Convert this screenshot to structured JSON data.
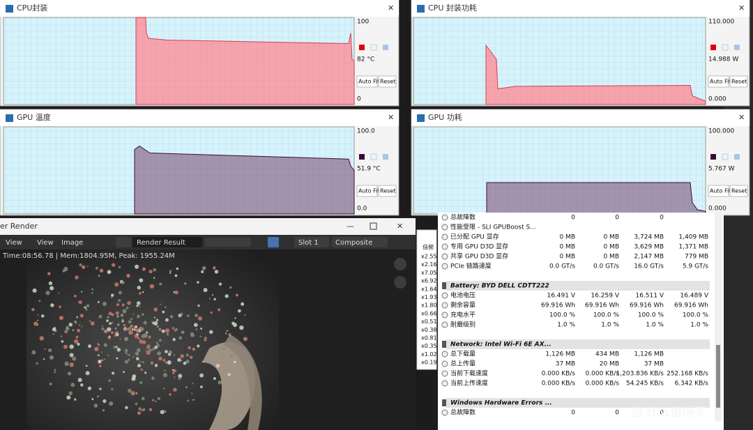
{
  "graphs": [
    {
      "title": "CPU封装",
      "max": "100",
      "current": "82 °C",
      "min": "0"
    },
    {
      "title": "CPU 封装功耗",
      "max": "110.000",
      "current": "14.988 W",
      "min": "0.000"
    },
    {
      "title": "GPU 温度",
      "max": "100.0",
      "current": "51.9 °C",
      "min": "0.0"
    },
    {
      "title": "GPU 功耗",
      "max": "100.000",
      "current": "5.767 W",
      "min": "0.000"
    }
  ],
  "buttons": {
    "auto_fit": "Auto Fit",
    "reset": "Reset"
  },
  "render": {
    "title": "er Render",
    "menu": [
      "View",
      "View",
      "Image"
    ],
    "result": "Render Result",
    "slot": "Slot 1",
    "layer": "Composite",
    "status": "Time:08:56.78 | Mem:1804.95M, Peak: 1955.24M"
  },
  "multipliers": {
    "header": "倍频",
    "values": [
      "x2.55",
      "x2.16",
      "x7.05",
      "x6.92",
      "x1.64",
      "x1.93",
      "x1.80",
      "x0.66",
      "x0.51",
      "x0.38",
      "x0.81",
      "x0.35",
      "x1.02",
      "x0.19"
    ]
  },
  "sensors": {
    "rows": [
      {
        "label": "总故障数",
        "values": [
          "0",
          "0",
          "0"
        ]
      },
      {
        "label": "性能受限 - SLI GPUBoost S..."
      },
      {
        "label": "已分配 GPU 显存",
        "values": [
          "0 MB",
          "0 MB",
          "3,724 MB",
          "1,409 MB"
        ]
      },
      {
        "label": "专用 GPU D3D 显存",
        "values": [
          "0 MB",
          "0 MB",
          "3,629 MB",
          "1,371 MB"
        ]
      },
      {
        "label": "共享 GPU D3D 显存",
        "values": [
          "0 MB",
          "0 MB",
          "2,147 MB",
          "779 MB"
        ]
      },
      {
        "label": "PCIe 链路速度",
        "values": [
          "0.0 GT/s",
          "0.0 GT/s",
          "16.0 GT/s",
          "5.9 GT/s"
        ]
      },
      {
        "section": "Battery: BYD DELL CDTT222"
      },
      {
        "label": "电池电压",
        "values": [
          "16.491 V",
          "16.259 V",
          "16.511 V",
          "16.489 V"
        ]
      },
      {
        "label": "剩余容量",
        "values": [
          "69.916 Wh",
          "69.916 Wh",
          "69.916 Wh",
          "69.916 Wh"
        ]
      },
      {
        "label": "充电水平",
        "values": [
          "100.0 %",
          "100.0 %",
          "100.0 %",
          "100.0 %"
        ]
      },
      {
        "label": "耐磨级别",
        "values": [
          "1.0 %",
          "1.0 %",
          "1.0 %",
          "1.0 %"
        ]
      },
      {
        "section": "Network: Intel Wi-Fi 6E AX..."
      },
      {
        "label": "总下载量",
        "values": [
          "1,126 MB",
          "434 MB",
          "1,126 MB"
        ]
      },
      {
        "label": "总上传量",
        "values": [
          "37 MB",
          "20 MB",
          "37 MB"
        ]
      },
      {
        "label": "当前下载速度",
        "values": [
          "0.000 KB/s",
          "0.000 KB/s",
          "1,203.836 KB/s",
          "252.168 KB/s"
        ]
      },
      {
        "label": "当前上传速度",
        "values": [
          "0.000 KB/s",
          "0.000 KB/s",
          "54.245 KB/s",
          "6.342 KB/s"
        ]
      },
      {
        "section": "Windows Hardware Errors ..."
      },
      {
        "label": "总故障数",
        "values": [
          "0",
          "0",
          "0"
        ]
      }
    ]
  },
  "watermark": "值 什么值得买"
}
